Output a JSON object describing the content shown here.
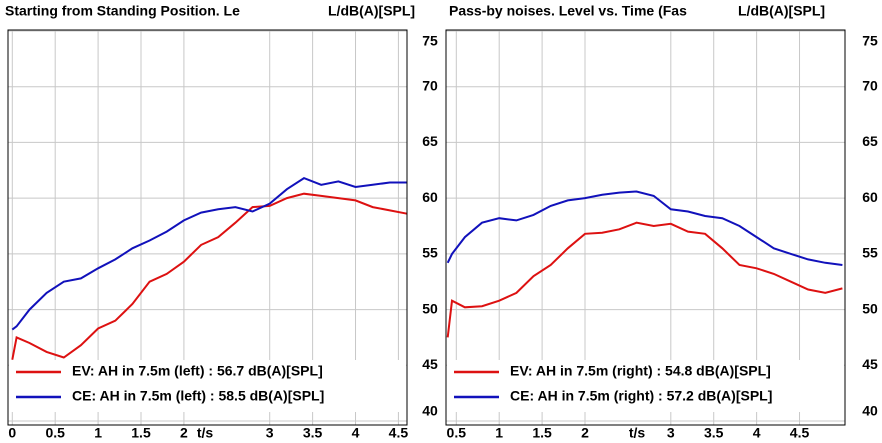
{
  "chart_data": [
    {
      "type": "line",
      "title": "Starting from Standing Position. Le",
      "ylabel": "L/dB(A)[SPL]",
      "xlabel": "t/s",
      "x": [
        0,
        0.05,
        0.2,
        0.4,
        0.6,
        0.8,
        1.0,
        1.2,
        1.4,
        1.6,
        1.8,
        2.0,
        2.2,
        2.4,
        2.6,
        2.8,
        3.0,
        3.2,
        3.4,
        3.6,
        3.8,
        4.0,
        4.2,
        4.4,
        4.6
      ],
      "series": [
        {
          "name": "EV: AH in 7.5m (left) : 56.7 dB(A)[SPL]",
          "color": "#dd1111",
          "values": [
            45.5,
            47.5,
            47,
            46.2,
            45.7,
            46.8,
            48.3,
            49,
            50.5,
            52.5,
            53.2,
            54.3,
            55.8,
            56.5,
            57.8,
            59.2,
            59.3,
            60,
            60.4,
            60.2,
            60,
            59.8,
            59.2,
            58.9,
            58.6
          ]
        },
        {
          "name": "CE: AH in 7.5m (left) : 58.5 dB(A)[SPL]",
          "color": "#1111bb",
          "values": [
            48.2,
            48.5,
            50,
            51.5,
            52.5,
            52.8,
            53.7,
            54.5,
            55.5,
            56.2,
            57,
            58,
            58.7,
            59,
            59.2,
            58.8,
            59.5,
            60.8,
            61.8,
            61.2,
            61.5,
            61,
            61.2,
            61.4,
            61.4
          ]
        }
      ],
      "xlim": [
        -0.05,
        4.6
      ],
      "xticks": [
        0,
        0.5,
        1,
        1.5,
        2,
        3,
        3.5,
        4,
        4.5
      ],
      "ylim": [
        40,
        75
      ],
      "yticks": [
        40,
        45,
        50,
        55,
        60,
        65,
        70,
        75
      ],
      "grid": true,
      "legend": "lower left"
    },
    {
      "type": "line",
      "title": "Pass-by noises. Level vs. Time (Fas",
      "ylabel": "L/dB(A)[SPL]",
      "xlabel": "t/s",
      "x": [
        0.4,
        0.45,
        0.6,
        0.8,
        1.0,
        1.2,
        1.4,
        1.6,
        1.8,
        2.0,
        2.2,
        2.4,
        2.6,
        2.8,
        3.0,
        3.2,
        3.4,
        3.6,
        3.8,
        4.0,
        4.2,
        4.4,
        4.6,
        4.8,
        5.0
      ],
      "series": [
        {
          "name": "EV: AH in 7.5m (right) : 54.8 dB(A)[SPL]",
          "color": "#dd1111",
          "values": [
            47.5,
            50.8,
            50.2,
            50.3,
            50.8,
            51.5,
            53,
            54,
            55.5,
            56.8,
            56.9,
            57.2,
            57.8,
            57.5,
            57.7,
            57,
            56.8,
            55.5,
            54,
            53.7,
            53.2,
            52.5,
            51.8,
            51.5,
            51.9
          ]
        },
        {
          "name": "CE: AH in 7.5m (right) : 57.2 dB(A)[SPL]",
          "color": "#1111bb",
          "values": [
            54.2,
            55,
            56.5,
            57.8,
            58.2,
            58,
            58.5,
            59.3,
            59.8,
            60,
            60.3,
            60.5,
            60.6,
            60.2,
            59,
            58.8,
            58.4,
            58.2,
            57.5,
            56.5,
            55.5,
            55,
            54.5,
            54.2,
            54
          ]
        }
      ],
      "xlim": [
        0.38,
        5.03
      ],
      "xticks": [
        0.5,
        1,
        1.5,
        2,
        3,
        3.5,
        4,
        4.5
      ],
      "ylim": [
        40,
        75
      ],
      "yticks": [
        40,
        45,
        50,
        55,
        60,
        65,
        70,
        75
      ],
      "grid": true,
      "legend": "lower left"
    }
  ]
}
